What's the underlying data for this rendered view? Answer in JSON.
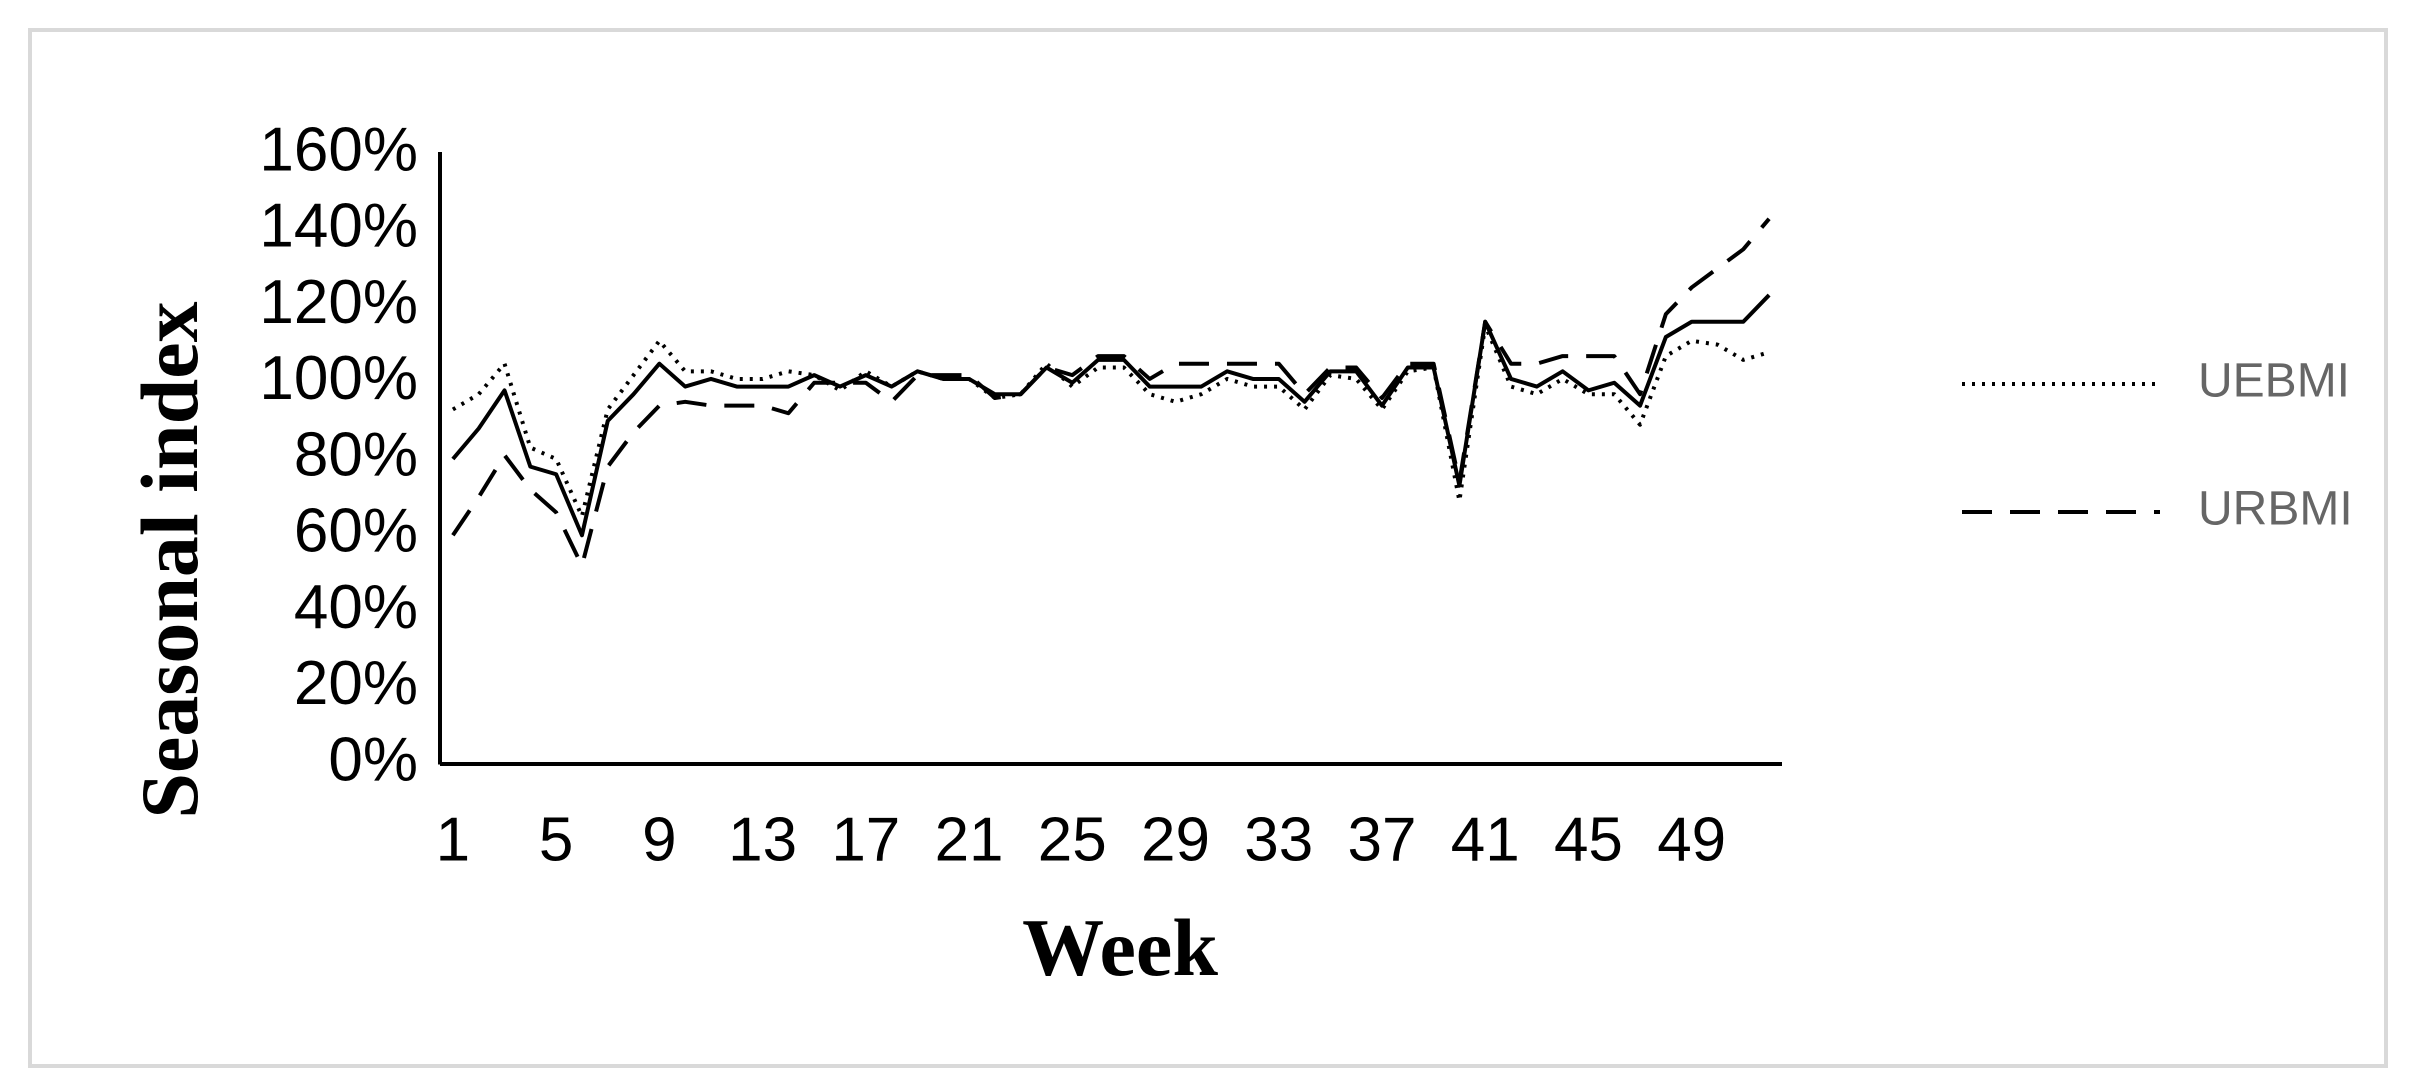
{
  "chart_data": {
    "type": "line",
    "x_label": "Week",
    "y_label": "Seasonal index",
    "x": [
      1,
      2,
      3,
      4,
      5,
      6,
      7,
      8,
      9,
      10,
      11,
      12,
      13,
      14,
      15,
      16,
      17,
      18,
      19,
      20,
      21,
      22,
      23,
      24,
      25,
      26,
      27,
      28,
      29,
      30,
      31,
      32,
      33,
      34,
      35,
      36,
      37,
      38,
      39,
      40,
      41,
      42,
      43,
      44,
      45,
      46,
      47,
      48,
      49,
      50,
      51,
      52
    ],
    "xlim": [
      0.5,
      52.5
    ],
    "xticks": [
      1,
      5,
      9,
      13,
      17,
      21,
      25,
      29,
      33,
      37,
      41,
      45,
      49
    ],
    "ylim": [
      0,
      160
    ],
    "yticks": [
      {
        "value": 0,
        "label": "0%"
      },
      {
        "value": 20,
        "label": "20%"
      },
      {
        "value": 40,
        "label": "40%"
      },
      {
        "value": 60,
        "label": "60%"
      },
      {
        "value": 80,
        "label": "80%"
      },
      {
        "value": 100,
        "label": "100%"
      },
      {
        "value": 120,
        "label": "120%"
      },
      {
        "value": 140,
        "label": "140%"
      },
      {
        "value": 160,
        "label": "160%"
      }
    ],
    "grid": false,
    "legend": "right",
    "series": [
      {
        "color": "#000000",
        "style": "solid",
        "values": [
          80,
          88,
          98,
          78,
          76,
          60,
          90,
          97,
          105,
          99,
          101,
          99,
          99,
          99,
          102,
          99,
          102,
          99,
          103,
          101,
          101,
          97,
          97,
          104,
          100,
          106,
          106,
          99,
          99,
          99,
          103,
          101,
          101,
          95,
          103,
          103,
          94,
          104,
          104,
          73,
          116,
          101,
          99,
          103,
          98,
          100,
          94,
          112,
          116,
          116,
          116,
          123
        ]
      },
      {
        "name": "UEBMI",
        "color": "#000000",
        "style": "dotted",
        "values": [
          93,
          97,
          105,
          83,
          80,
          65,
          93,
          102,
          111,
          103,
          103,
          101,
          101,
          103,
          102,
          98,
          103,
          99,
          103,
          101,
          101,
          96,
          97,
          105,
          99,
          104,
          104,
          97,
          95,
          97,
          101,
          99,
          99,
          93,
          102,
          101,
          93,
          103,
          104,
          69,
          115,
          99,
          97,
          101,
          97,
          97,
          89,
          107,
          111,
          110,
          106,
          108
        ]
      },
      {
        "name": "URBMI",
        "color": "#000000",
        "style": "dashed",
        "values": [
          60,
          70,
          81,
          72,
          66,
          52,
          78,
          87,
          94,
          95,
          94,
          94,
          94,
          92,
          100,
          100,
          100,
          95,
          102,
          102,
          102,
          96,
          97,
          104,
          102,
          107,
          107,
          101,
          105,
          105,
          105,
          105,
          105,
          97,
          104,
          104,
          96,
          105,
          105,
          74,
          116,
          105,
          105,
          107,
          107,
          107,
          97,
          118,
          125,
          130,
          135,
          143
        ]
      }
    ]
  }
}
